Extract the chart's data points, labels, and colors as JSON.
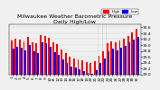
{
  "title": "Milwaukee Weather Barometric Pressure\nDaily High/Low",
  "title_fontsize": 4.5,
  "bar_width": 0.4,
  "ylabel": "",
  "ylim": [
    29.0,
    30.7
  ],
  "yticks": [
    29.0,
    29.2,
    29.4,
    29.6,
    29.8,
    30.0,
    30.2,
    30.4,
    30.6
  ],
  "ytick_fontsize": 3.2,
  "xtick_fontsize": 3.0,
  "bg_color": "#f0f0f0",
  "high_color": "#ff0000",
  "low_color": "#0000ff",
  "legend_high": "High",
  "legend_low": "Low",
  "dates": [
    "1",
    "2",
    "3",
    "4",
    "5",
    "6",
    "7",
    "8",
    "9",
    "10",
    "11",
    "12",
    "13",
    "14",
    "15",
    "16",
    "17",
    "18",
    "19",
    "20",
    "21",
    "22",
    "23",
    "24",
    "25",
    "26",
    "27",
    "28",
    "29",
    "30",
    "31"
  ],
  "high_values": [
    30.15,
    30.22,
    30.18,
    30.12,
    30.28,
    30.1,
    30.05,
    30.35,
    30.32,
    30.24,
    30.08,
    30.02,
    29.85,
    29.72,
    29.6,
    29.55,
    29.5,
    29.48,
    29.42,
    29.38,
    29.45,
    29.62,
    29.8,
    30.05,
    30.12,
    30.08,
    30.15,
    30.22,
    30.32,
    30.42,
    30.55
  ],
  "low_values": [
    29.88,
    29.95,
    29.9,
    29.82,
    30.0,
    29.8,
    29.72,
    30.08,
    30.05,
    29.95,
    29.75,
    29.65,
    29.52,
    29.4,
    29.28,
    29.22,
    29.18,
    29.12,
    29.05,
    29.02,
    29.15,
    29.38,
    29.55,
    29.8,
    29.88,
    29.82,
    29.9,
    29.98,
    30.08,
    30.18,
    30.28
  ],
  "dotted_lines": [
    21,
    22,
    23
  ],
  "dotted_color": "#888888"
}
